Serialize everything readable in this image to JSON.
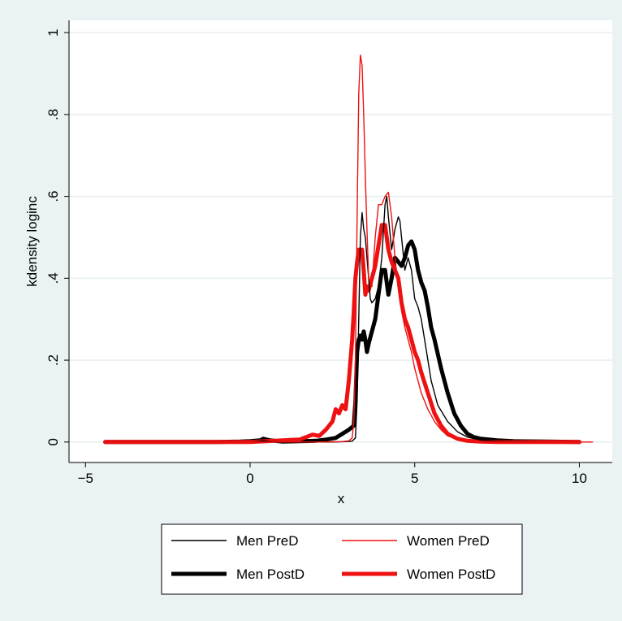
{
  "chart_data": {
    "type": "line",
    "title": "",
    "xlabel": "x",
    "ylabel": "kdensity loginc",
    "xlim": [
      -5.5,
      11
    ],
    "ylim": [
      -0.05,
      1.03
    ],
    "xticks": [
      -5,
      0,
      5,
      10
    ],
    "yticks": [
      0,
      0.2,
      0.4,
      0.6,
      0.8,
      1
    ],
    "xtick_labels": [
      "−5",
      "0",
      "5",
      "10"
    ],
    "ytick_labels": [
      "0",
      ".2",
      ".4",
      ".6",
      ".8",
      "1"
    ],
    "grid": true,
    "legend_position": "bottom",
    "series": [
      {
        "name": "Men PreD",
        "color": "#000000",
        "style": "thin",
        "x": [
          -4.4,
          -3,
          -2,
          -1,
          0,
          0.3,
          0.4,
          0.6,
          1,
          1.5,
          2,
          2.5,
          2.9,
          3.1,
          3.2,
          3.25,
          3.3,
          3.35,
          3.4,
          3.45,
          3.5,
          3.55,
          3.6,
          3.65,
          3.7,
          3.8,
          3.9,
          4.0,
          4.1,
          4.15,
          4.2,
          4.3,
          4.4,
          4.5,
          4.55,
          4.6,
          4.7,
          4.8,
          4.9,
          5.0,
          5.1,
          5.2,
          5.3,
          5.5,
          5.7,
          6.0,
          6.3,
          6.6,
          7.0,
          7.5,
          8,
          9,
          10
        ],
        "y": [
          0,
          0,
          0,
          0,
          0,
          0.002,
          0.003,
          0.001,
          0,
          0,
          0,
          0,
          0.001,
          0.002,
          0.01,
          0.1,
          0.3,
          0.5,
          0.56,
          0.52,
          0.5,
          0.45,
          0.4,
          0.35,
          0.34,
          0.35,
          0.38,
          0.45,
          0.58,
          0.6,
          0.55,
          0.47,
          0.52,
          0.55,
          0.54,
          0.5,
          0.42,
          0.45,
          0.42,
          0.35,
          0.33,
          0.3,
          0.25,
          0.15,
          0.09,
          0.05,
          0.025,
          0.012,
          0.005,
          0.002,
          0.001,
          0,
          0
        ]
      },
      {
        "name": "Women PreD",
        "color": "#ee1111",
        "style": "thin",
        "x": [
          -4.4,
          -3,
          -2,
          -1,
          0,
          1,
          2,
          2.8,
          3.0,
          3.1,
          3.15,
          3.2,
          3.25,
          3.3,
          3.35,
          3.4,
          3.45,
          3.5,
          3.55,
          3.6,
          3.7,
          3.8,
          3.9,
          4.0,
          4.1,
          4.2,
          4.3,
          4.4,
          4.5,
          4.6,
          4.7,
          4.8,
          4.9,
          5.0,
          5.2,
          5.4,
          5.6,
          5.7,
          5.8,
          6.0,
          6.3,
          6.6,
          7,
          8,
          9,
          10,
          10.4
        ],
        "y": [
          0,
          0,
          0,
          0,
          0,
          0,
          0,
          0.001,
          0.003,
          0.01,
          0.05,
          0.2,
          0.55,
          0.85,
          0.945,
          0.92,
          0.8,
          0.65,
          0.52,
          0.4,
          0.38,
          0.5,
          0.58,
          0.58,
          0.6,
          0.61,
          0.55,
          0.45,
          0.38,
          0.32,
          0.28,
          0.25,
          0.22,
          0.18,
          0.12,
          0.08,
          0.05,
          0.04,
          0.03,
          0.015,
          0.007,
          0.003,
          0.001,
          0,
          0,
          0,
          0
        ]
      },
      {
        "name": "Men PostD",
        "color": "#000000",
        "style": "thick",
        "x": [
          -4.4,
          -3,
          -2,
          -1,
          -0.3,
          0,
          0.3,
          0.4,
          0.6,
          1,
          1.5,
          2,
          2.3,
          2.6,
          2.8,
          3.0,
          3.15,
          3.2,
          3.25,
          3.3,
          3.35,
          3.4,
          3.45,
          3.5,
          3.55,
          3.6,
          3.7,
          3.8,
          3.9,
          4.0,
          4.1,
          4.2,
          4.3,
          4.4,
          4.5,
          4.6,
          4.7,
          4.8,
          4.9,
          5.0,
          5.1,
          5.2,
          5.3,
          5.4,
          5.5,
          5.6,
          5.8,
          6.0,
          6.2,
          6.4,
          6.6,
          6.8,
          7.0,
          7.5,
          8,
          9,
          10
        ],
        "y": [
          0,
          0,
          0,
          0,
          0.001,
          0.002,
          0.004,
          0.008,
          0.004,
          0.001,
          0.002,
          0.003,
          0.006,
          0.01,
          0.02,
          0.03,
          0.04,
          0.1,
          0.22,
          0.25,
          0.26,
          0.25,
          0.27,
          0.25,
          0.22,
          0.24,
          0.27,
          0.3,
          0.36,
          0.42,
          0.42,
          0.36,
          0.4,
          0.45,
          0.44,
          0.43,
          0.45,
          0.48,
          0.49,
          0.47,
          0.42,
          0.39,
          0.37,
          0.33,
          0.28,
          0.25,
          0.18,
          0.12,
          0.07,
          0.04,
          0.02,
          0.012,
          0.008,
          0.004,
          0.002,
          0.001,
          0
        ]
      },
      {
        "name": "Women PostD",
        "color": "#ee1111",
        "style": "thick",
        "x": [
          -4.4,
          -3,
          -2,
          -1,
          0,
          0.5,
          1,
          1.5,
          1.7,
          1.9,
          2.1,
          2.3,
          2.5,
          2.6,
          2.7,
          2.8,
          2.9,
          3.0,
          3.1,
          3.15,
          3.2,
          3.25,
          3.3,
          3.35,
          3.4,
          3.45,
          3.5,
          3.55,
          3.6,
          3.7,
          3.8,
          3.9,
          4.0,
          4.1,
          4.2,
          4.3,
          4.4,
          4.5,
          4.6,
          4.7,
          4.8,
          4.9,
          5.0,
          5.1,
          5.2,
          5.4,
          5.6,
          5.8,
          6.0,
          6.3,
          6.6,
          7,
          7.5,
          8,
          9,
          10
        ],
        "y": [
          0,
          0,
          0,
          0,
          0,
          0.002,
          0.004,
          0.006,
          0.012,
          0.018,
          0.015,
          0.03,
          0.05,
          0.08,
          0.07,
          0.09,
          0.08,
          0.15,
          0.25,
          0.32,
          0.4,
          0.44,
          0.47,
          0.47,
          0.47,
          0.42,
          0.36,
          0.38,
          0.37,
          0.4,
          0.43,
          0.48,
          0.53,
          0.53,
          0.47,
          0.44,
          0.42,
          0.4,
          0.34,
          0.3,
          0.28,
          0.25,
          0.22,
          0.2,
          0.17,
          0.12,
          0.07,
          0.04,
          0.02,
          0.008,
          0.003,
          0.001,
          0,
          0,
          0,
          0
        ]
      }
    ]
  }
}
